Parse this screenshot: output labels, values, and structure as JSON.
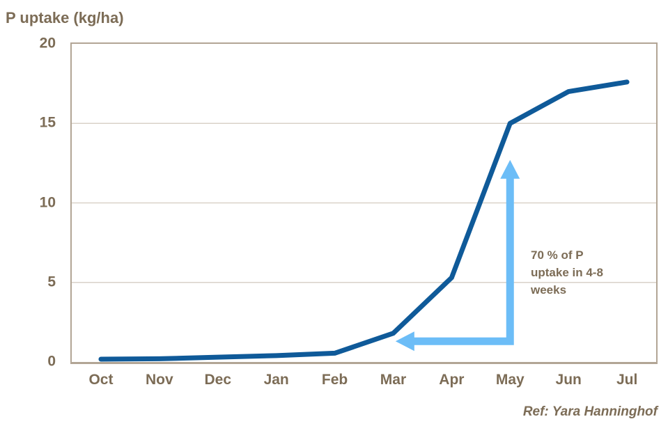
{
  "chart_data": {
    "type": "line",
    "title": "P uptake (kg/ha)",
    "categories": [
      "Oct",
      "Nov",
      "Dec",
      "Jan",
      "Feb",
      "Mar",
      "Apr",
      "May",
      "Jun",
      "Jul"
    ],
    "series": [
      {
        "name": "P uptake",
        "values": [
          0,
          0.2,
          0.3,
          0.4,
          0.55,
          1.8,
          5.3,
          15,
          17,
          17.6
        ]
      }
    ],
    "xlabel": "",
    "ylabel": "P uptake (kg/ha)",
    "ylim": [
      0,
      20
    ],
    "yticks": [
      20,
      15,
      10,
      5,
      0
    ],
    "gridline_values": [
      15,
      10,
      5
    ],
    "grid": "horizontal",
    "legend": "none",
    "annotation": {
      "text": "70 % of P\nuptake in 4-8\nweeks",
      "arrow": {
        "x_index": 7,
        "x_left_index": 5.04,
        "y_bottom": 1.3,
        "y_top": 12.7
      }
    },
    "colors": {
      "line": "#0f5a99",
      "arrow": "#6cbdf7",
      "text": "#7c6c56",
      "border": "#b2a595",
      "grid": "#d9d2c8"
    }
  },
  "footer": {
    "ref": "Ref: Yara Hanninghof"
  }
}
